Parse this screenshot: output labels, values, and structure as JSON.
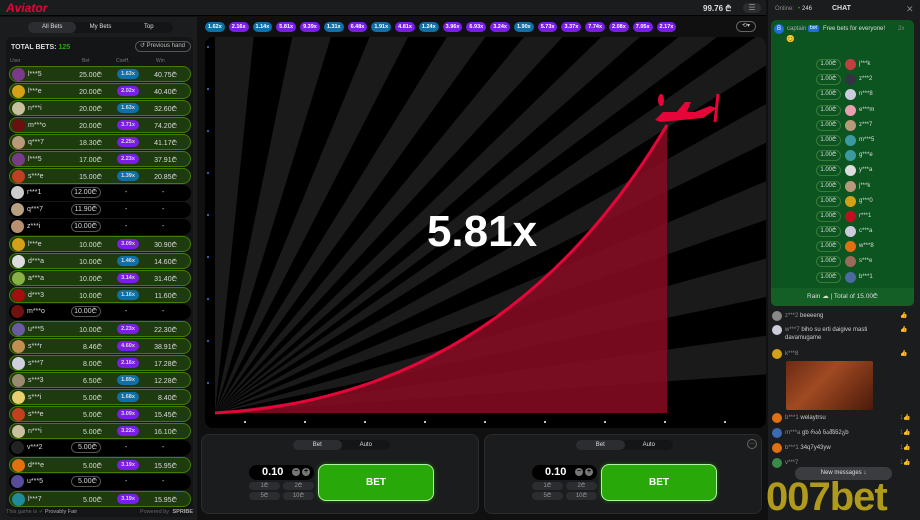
{
  "app": {
    "logo": "Aviator",
    "balance": "99.76 ₾",
    "menu_icon": "hamburger-icon"
  },
  "left": {
    "tabs": [
      "All Bets",
      "My Bets",
      "Top"
    ],
    "total_label": "TOTAL BETS:",
    "total_count": "125",
    "previous_hand": "Previous hand",
    "columns": [
      "User",
      "Bet",
      "Coeff.",
      "Win"
    ],
    "rows": [
      {
        "user": "l***5",
        "bet": "25.00₾",
        "coef": "1.63x",
        "win": "40.75₾"
      },
      {
        "user": "l***e",
        "bet": "20.00₾",
        "coef": "2.02x",
        "win": "40.40₾"
      },
      {
        "user": "n***i",
        "bet": "20.00₾",
        "coef": "1.63x",
        "win": "32.60₾"
      },
      {
        "user": "m***o",
        "bet": "20.00₾",
        "coef": "3.71x",
        "win": "74.20₾"
      },
      {
        "user": "q***7",
        "bet": "18.30₾",
        "coef": "2.25x",
        "win": "41.17₾"
      },
      {
        "user": "l***5",
        "bet": "17.00₾",
        "coef": "2.23x",
        "win": "37.91₾"
      },
      {
        "user": "s***e",
        "bet": "15.00₾",
        "coef": "1.39x",
        "win": "20.85₾"
      },
      {
        "user": "r***1",
        "bet": "12.00₾",
        "coef": "-",
        "win": "-"
      },
      {
        "user": "q***7",
        "bet": "11.90₾",
        "coef": "-",
        "win": "-"
      },
      {
        "user": "z***i",
        "bet": "10.00₾",
        "coef": "-",
        "win": "-"
      },
      {
        "user": "l***e",
        "bet": "10.00₾",
        "coef": "3.09x",
        "win": "30.90₾"
      },
      {
        "user": "d***a",
        "bet": "10.00₾",
        "coef": "1.46x",
        "win": "14.60₾"
      },
      {
        "user": "a***a",
        "bet": "10.00₾",
        "coef": "3.14x",
        "win": "31.40₾"
      },
      {
        "user": "d***3",
        "bet": "10.00₾",
        "coef": "1.16x",
        "win": "11.60₾"
      },
      {
        "user": "m***o",
        "bet": "10.00₾",
        "coef": "-",
        "win": "-"
      },
      {
        "user": "u***5",
        "bet": "10.00₾",
        "coef": "2.23x",
        "win": "22.30₾"
      },
      {
        "user": "s***r",
        "bet": "8.46₾",
        "coef": "4.60x",
        "win": "38.91₾"
      },
      {
        "user": "s***7",
        "bet": "8.00₾",
        "coef": "2.16x",
        "win": "17.28₾"
      },
      {
        "user": "s***3",
        "bet": "6.50₾",
        "coef": "1.89x",
        "win": "12.28₾"
      },
      {
        "user": "s***i",
        "bet": "5.00₾",
        "coef": "1.68x",
        "win": "8.40₾"
      },
      {
        "user": "s***e",
        "bet": "5.00₾",
        "coef": "3.09x",
        "win": "15.45₾"
      },
      {
        "user": "n***i",
        "bet": "5.00₾",
        "coef": "3.22x",
        "win": "16.10₾"
      },
      {
        "user": "v***2",
        "bet": "5.00₾",
        "coef": "-",
        "win": "-"
      },
      {
        "user": "d***e",
        "bet": "5.00₾",
        "coef": "3.19x",
        "win": "15.95₾"
      },
      {
        "user": "u***5",
        "bet": "5.00₾",
        "coef": "-",
        "win": "-"
      },
      {
        "user": "l***7",
        "bet": "5.00₾",
        "coef": "3.19x",
        "win": "15.95₾"
      }
    ],
    "footer_left": "This game is",
    "provably_fair": "Provably Fair",
    "powered_by": "Powered by",
    "provider": "SPRIBE"
  },
  "history": [
    "1.62x",
    "2.16x",
    "1.14x",
    "5.81x",
    "9.39x",
    "1.31x",
    "6.48x",
    "1.91x",
    "4.81x",
    "1.24x",
    "3.96x",
    "6.93x",
    "3.24x",
    "1.90x",
    "5.73x",
    "3.37x",
    "7.74x",
    "2.08x",
    "7.05x",
    "2.17x"
  ],
  "colors": {
    "low": "#0f6fa6",
    "mid": "#7a1ee3",
    "win_row": "#1e3a0f",
    "bet_button": "#28a909",
    "curve": "#e50539",
    "brand": "#e50539"
  },
  "game": {
    "multiplier": "5.81x"
  },
  "bet_panels": [
    {
      "tabs": [
        "Bet",
        "Auto"
      ],
      "stake": "0.10",
      "quick": [
        "1₾",
        "2₾",
        "5₾",
        "10₾"
      ],
      "button": "BET"
    },
    {
      "tabs": [
        "Bet",
        "Auto"
      ],
      "stake": "0.10",
      "quick": [
        "1₾",
        "2₾",
        "5₾",
        "10₾"
      ],
      "button": "BET"
    }
  ],
  "chat": {
    "online_label": "Online:",
    "online_count": "246",
    "title": "CHAT",
    "rain_user": "captain",
    "rain_badge": "bot",
    "rain_text": "Free bets for everyone!",
    "rain_count": "2x",
    "rain_list": [
      {
        "amt": "1.00₾",
        "user": "j***k"
      },
      {
        "amt": "1.00₾",
        "user": "z***2"
      },
      {
        "amt": "1.00₾",
        "user": "n***8"
      },
      {
        "amt": "1.00₾",
        "user": "e***m"
      },
      {
        "amt": "1.00₾",
        "user": "z***7"
      },
      {
        "amt": "1.00₾",
        "user": "m***5"
      },
      {
        "amt": "1.00₾",
        "user": "g***e"
      },
      {
        "amt": "1.00₾",
        "user": "y***a"
      },
      {
        "amt": "1.00₾",
        "user": "j***k"
      },
      {
        "amt": "1.00₾",
        "user": "g***0"
      },
      {
        "amt": "1.00₾",
        "user": "r***1"
      },
      {
        "amt": "1.00₾",
        "user": "c***a"
      },
      {
        "amt": "1.00₾",
        "user": "w***8"
      },
      {
        "amt": "1.00₾",
        "user": "s***e"
      },
      {
        "amt": "1.00₾",
        "user": "b***1"
      }
    ],
    "rain_footer": "Rain ☁ | Total of 15.00₾",
    "messages": [
      {
        "user": "z***2",
        "text": "beeeeng",
        "likes": ""
      },
      {
        "user": "w***7",
        "text": "biho su erti daigive masti davamugame",
        "likes": ""
      },
      {
        "user": "k***8",
        "text": "",
        "likes": ""
      },
      {
        "user": "b***1",
        "text": "welaytrsu",
        "likes": "1"
      },
      {
        "user": "m***a",
        "text": "gb რაბ ნამზნ2გb",
        "likes": "1"
      },
      {
        "user": "b***1",
        "text": "34q7y43yw",
        "likes": "1"
      },
      {
        "user": "v***7",
        "text": "",
        "likes": "1"
      }
    ],
    "new_messages": "New messages ↓"
  },
  "watermark": "007bet"
}
